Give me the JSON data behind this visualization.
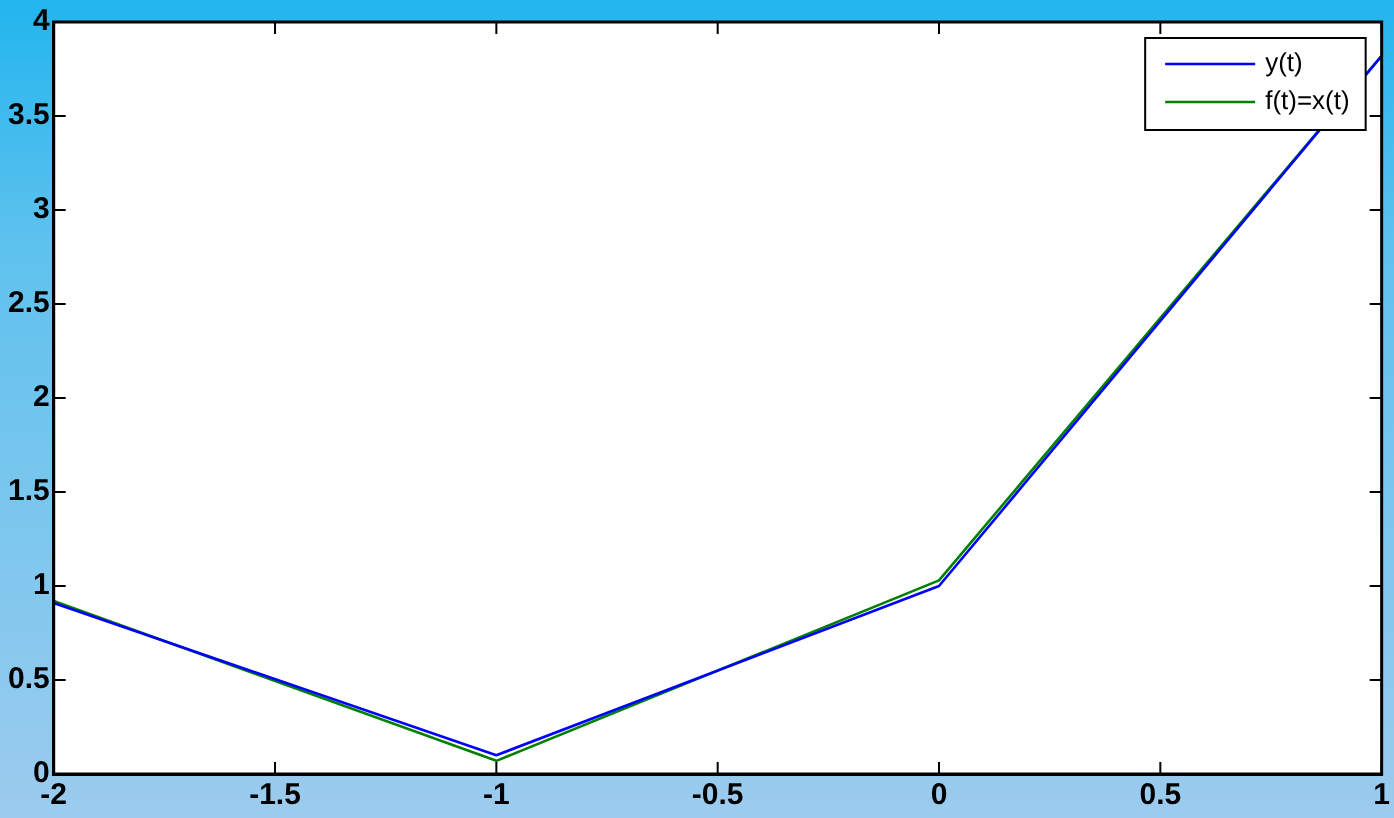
{
  "chart_data": {
    "type": "line",
    "x": [
      -2,
      -1,
      0,
      1
    ],
    "series": [
      {
        "name": "y(t)",
        "color": "#0000ff",
        "values": [
          0.91,
          0.1,
          1.0,
          3.82
        ]
      },
      {
        "name": "f(t)=x(t)",
        "color": "#008000",
        "values": [
          0.92,
          0.07,
          1.03,
          3.82
        ]
      }
    ],
    "xlim": [
      -2,
      1
    ],
    "xticks": [
      -2,
      -1.5,
      -1,
      -0.5,
      0,
      0.5,
      1
    ],
    "ylim": [
      0,
      4
    ],
    "yticks": [
      0,
      0.5,
      1,
      1.5,
      2,
      2.5,
      3,
      3.5,
      4
    ],
    "grid": false,
    "legend": "top right",
    "marker": "none",
    "line_style": "solid"
  }
}
